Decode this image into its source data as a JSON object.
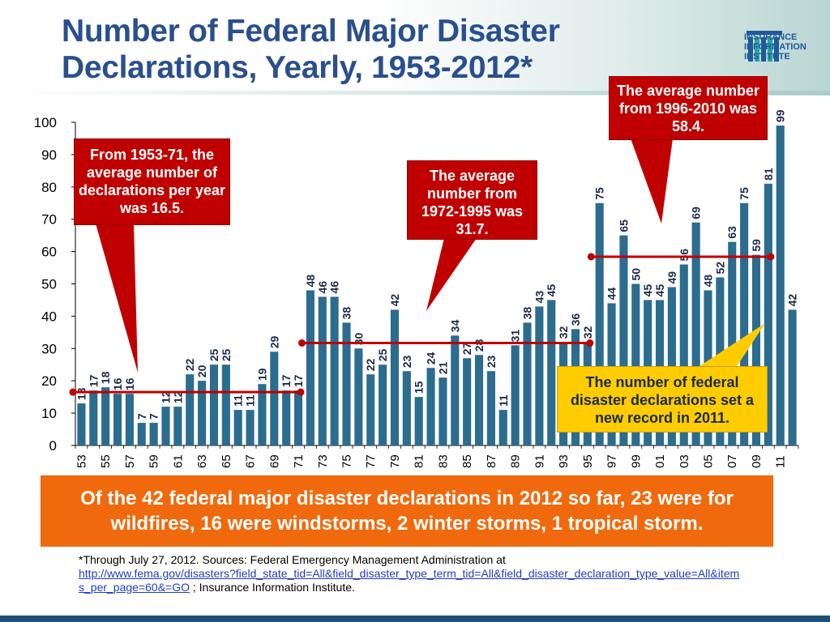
{
  "title": {
    "line1": "Number of Federal Major Disaster",
    "line2": "Declarations, Yearly, 1953-2012*"
  },
  "logo": {
    "line1": "INSURANCE",
    "line2": "INFORMATION",
    "line3": "INSTITUTE"
  },
  "colors": {
    "title": "#2a4f8d",
    "bar": "#2b6c8f",
    "average_line": "#c00000",
    "callout_red": "#c00000",
    "callout_yellow": "#ffcc00",
    "banner": "#f06a0d"
  },
  "chart_data": {
    "type": "bar",
    "title": "Number of Federal Major Disaster Declarations, Yearly, 1953-2012*",
    "xlabel": "",
    "ylabel": "",
    "ylim": [
      0,
      100
    ],
    "yticks": [
      0,
      10,
      20,
      30,
      40,
      50,
      60,
      70,
      80,
      90,
      100
    ],
    "x_tick_labels": [
      "53",
      "55",
      "57",
      "59",
      "61",
      "63",
      "65",
      "67",
      "69",
      "71",
      "73",
      "75",
      "77",
      "79",
      "81",
      "83",
      "85",
      "87",
      "89",
      "91",
      "93",
      "95",
      "97",
      "99",
      "01",
      "03",
      "05",
      "07",
      "09",
      "11"
    ],
    "categories": [
      1953,
      1954,
      1955,
      1956,
      1957,
      1958,
      1959,
      1960,
      1961,
      1962,
      1963,
      1964,
      1965,
      1966,
      1967,
      1968,
      1969,
      1970,
      1971,
      1972,
      1973,
      1974,
      1975,
      1976,
      1977,
      1978,
      1979,
      1980,
      1981,
      1982,
      1983,
      1984,
      1985,
      1986,
      1987,
      1988,
      1989,
      1990,
      1991,
      1992,
      1993,
      1994,
      1995,
      1996,
      1997,
      1998,
      1999,
      2000,
      2001,
      2002,
      2003,
      2004,
      2005,
      2006,
      2007,
      2008,
      2009,
      2010,
      2011,
      2012
    ],
    "values": [
      13,
      17,
      18,
      16,
      16,
      7,
      7,
      12,
      12,
      22,
      20,
      25,
      25,
      11,
      11,
      19,
      29,
      17,
      17,
      48,
      46,
      46,
      38,
      30,
      22,
      25,
      42,
      23,
      15,
      24,
      21,
      34,
      27,
      28,
      23,
      11,
      31,
      38,
      43,
      45,
      32,
      36,
      32,
      75,
      44,
      65,
      50,
      45,
      45,
      49,
      56,
      69,
      48,
      52,
      63,
      75,
      59,
      81,
      99,
      42
    ],
    "averages": [
      {
        "label": "1953-71",
        "from": 1953,
        "to": 1971,
        "value": 16.5
      },
      {
        "label": "1972-1995",
        "from": 1972,
        "to": 1995,
        "value": 31.7
      },
      {
        "label": "1996-2010",
        "from": 1996,
        "to": 2010,
        "value": 58.4
      }
    ]
  },
  "callouts": {
    "c1": "From 1953-71, the average number of declarations per year was 16.5.",
    "c2": "The average number from 1972-1995 was 31.7.",
    "c3": "The average number from 1996-2010 was 58.4.",
    "c4": "The number of federal disaster declarations set a new record in 2011."
  },
  "banner": "Of the 42 federal major disaster declarations in 2012 so far, 23 were for wildfires, 16 were windstorms, 2 winter storms, 1 tropical storm.",
  "footnote": {
    "text1": "*Through July 27, 2012.  Sources: Federal Emergency Management Administration at",
    "link": "http://www.fema.gov/disasters?field_state_tid=All&field_disaster_type_term_tid=All&field_disaster_declaration_type_value=All&items_per_page=60&=GO",
    "text2": " ; Insurance Information Institute."
  }
}
